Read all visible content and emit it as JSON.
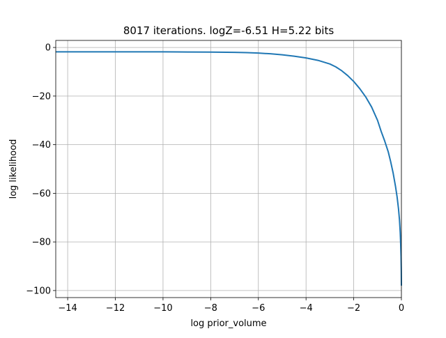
{
  "chart_data": {
    "type": "line",
    "title": "8017 iterations. logZ=-6.51 H=5.22 bits",
    "xlabel": "log prior_volume",
    "ylabel": "log likelihood",
    "xlim": [
      -14.5,
      0.0
    ],
    "ylim": [
      -102.9,
      2.9
    ],
    "grid": true,
    "xticks": [
      -14,
      -12,
      -10,
      -8,
      -6,
      -4,
      -2,
      0
    ],
    "xtick_labels": [
      "−14",
      "−12",
      "−10",
      "−8",
      "−6",
      "−4",
      "−2",
      "0"
    ],
    "yticks": [
      0,
      -20,
      -40,
      -60,
      -80,
      -100
    ],
    "ytick_labels": [
      "0",
      "−20",
      "−40",
      "−60",
      "−80",
      "−100"
    ],
    "series": [
      {
        "color": "#1f77b4",
        "x": [
          -14.5,
          -13.0,
          -12.0,
          -11.0,
          -10.0,
          -9.0,
          -8.0,
          -7.0,
          -6.5,
          -6.0,
          -5.5,
          -5.0,
          -4.5,
          -4.0,
          -3.5,
          -3.0,
          -2.75,
          -2.5,
          -2.25,
          -2.0,
          -1.75,
          -1.5,
          -1.25,
          -1.0,
          -0.85,
          -0.7,
          -0.55,
          -0.45,
          -0.35,
          -0.25,
          -0.18,
          -0.12,
          -0.08,
          -0.05,
          -0.03,
          -0.015,
          -0.005,
          0.0
        ],
        "y": [
          -1.8,
          -1.8,
          -1.8,
          -1.8,
          -1.8,
          -1.85,
          -1.9,
          -2.0,
          -2.1,
          -2.3,
          -2.6,
          -3.0,
          -3.6,
          -4.3,
          -5.3,
          -6.8,
          -8.0,
          -9.6,
          -11.6,
          -14.0,
          -16.9,
          -20.3,
          -24.5,
          -30.0,
          -34.5,
          -38.5,
          -43.0,
          -47.0,
          -51.5,
          -57.0,
          -61.5,
          -66.5,
          -71.0,
          -76.0,
          -81.0,
          -86.0,
          -92.0,
          -98.0
        ]
      }
    ]
  }
}
